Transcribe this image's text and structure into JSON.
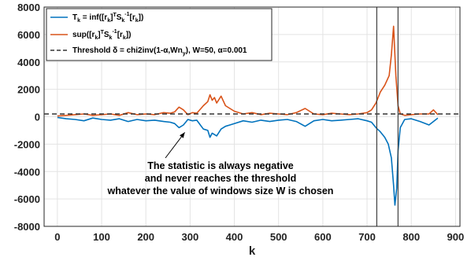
{
  "chart_data": {
    "type": "line",
    "xlabel": "k",
    "ylabel": "",
    "xlim": [
      -30,
      910
    ],
    "ylim": [
      -8000,
      8000
    ],
    "xticks": [
      0,
      100,
      200,
      300,
      400,
      500,
      600,
      700,
      800,
      900
    ],
    "yticks": [
      -8000,
      -6000,
      -4000,
      -2000,
      0,
      2000,
      4000,
      6000,
      8000
    ],
    "grid": true,
    "legend_position": "top-left",
    "legend": [
      {
        "key": "inf",
        "prefix": "T",
        "sub": "k",
        "text": " = inf([r",
        "sub2": "k",
        "text2": "]",
        "sup": "T",
        "text3": "S",
        "sub3": "k",
        "sup3": "-1",
        "text4": "[r",
        "sub4": "k",
        "text5": "])"
      },
      {
        "key": "sup",
        "text": "sup([r",
        "sub": "k",
        "text2": "]",
        "sup": "T",
        "text3": "S",
        "sub3": "k",
        "sup3": "-1",
        "text4": "[r",
        "sub4": "k",
        "text5": "])"
      },
      {
        "key": "threshold",
        "text": "Threshold δ = chi2inv(1-α,Wn",
        "sub": "y",
        "text2": "), W=50, α=0.001"
      }
    ],
    "series": [
      {
        "key": "inf",
        "color": "#0072BD",
        "x": [
          0,
          20,
          40,
          60,
          80,
          100,
          120,
          140,
          160,
          180,
          200,
          220,
          240,
          255,
          265,
          275,
          285,
          295,
          305,
          315,
          330,
          340,
          345,
          350,
          360,
          370,
          380,
          390,
          400,
          420,
          440,
          460,
          480,
          500,
          520,
          540,
          560,
          580,
          600,
          620,
          640,
          660,
          680,
          700,
          710,
          720,
          730,
          740,
          748,
          755,
          760,
          763,
          767,
          770,
          775,
          785,
          800,
          820,
          840,
          860
        ],
        "y": [
          -50,
          -150,
          -200,
          -300,
          -100,
          -200,
          -250,
          -150,
          -350,
          -200,
          -300,
          -250,
          -350,
          -400,
          -500,
          -800,
          -600,
          -200,
          -300,
          -250,
          -900,
          -1000,
          -1500,
          -1200,
          -1400,
          -900,
          -700,
          -600,
          -500,
          -300,
          -400,
          -250,
          -350,
          -250,
          -200,
          -350,
          -700,
          -300,
          -200,
          -300,
          -250,
          -200,
          -150,
          -300,
          -400,
          -800,
          -1100,
          -1500,
          -2000,
          -3000,
          -5000,
          -6450,
          -5200,
          -2500,
          -800,
          -200,
          -150,
          -350,
          -600,
          -100
        ]
      },
      {
        "key": "sup",
        "color": "#D95319",
        "x": [
          0,
          20,
          40,
          60,
          80,
          100,
          120,
          140,
          160,
          180,
          200,
          220,
          240,
          255,
          265,
          275,
          285,
          295,
          305,
          315,
          330,
          340,
          345,
          350,
          355,
          360,
          370,
          380,
          390,
          400,
          420,
          440,
          460,
          480,
          500,
          520,
          540,
          560,
          580,
          600,
          620,
          640,
          660,
          680,
          700,
          710,
          720,
          730,
          740,
          750,
          755,
          760,
          765,
          770,
          775,
          785,
          800,
          820,
          840,
          850,
          860
        ],
        "y": [
          50,
          100,
          150,
          200,
          100,
          150,
          200,
          100,
          300,
          150,
          200,
          150,
          300,
          250,
          350,
          700,
          500,
          150,
          300,
          250,
          800,
          1100,
          1600,
          1200,
          1400,
          1000,
          1500,
          800,
          600,
          400,
          200,
          300,
          150,
          250,
          200,
          150,
          300,
          600,
          200,
          150,
          250,
          200,
          150,
          200,
          300,
          500,
          1000,
          1800,
          2300,
          3000,
          4500,
          6600,
          3000,
          800,
          200,
          100,
          150,
          200,
          200,
          500,
          150
        ]
      },
      {
        "key": "threshold",
        "color": "#333333",
        "dashed": true,
        "x": [
          -30,
          910
        ],
        "y": [
          200,
          200
        ]
      }
    ],
    "vlines": [
      {
        "x": 722
      },
      {
        "x": 770
      }
    ],
    "annotation": {
      "lines": [
        "The statistic is always negative",
        "and never reaches the threshold",
        "whatever the value of windows size W is chosen"
      ],
      "arrow_to": {
        "x": 288,
        "y": -800
      }
    }
  }
}
